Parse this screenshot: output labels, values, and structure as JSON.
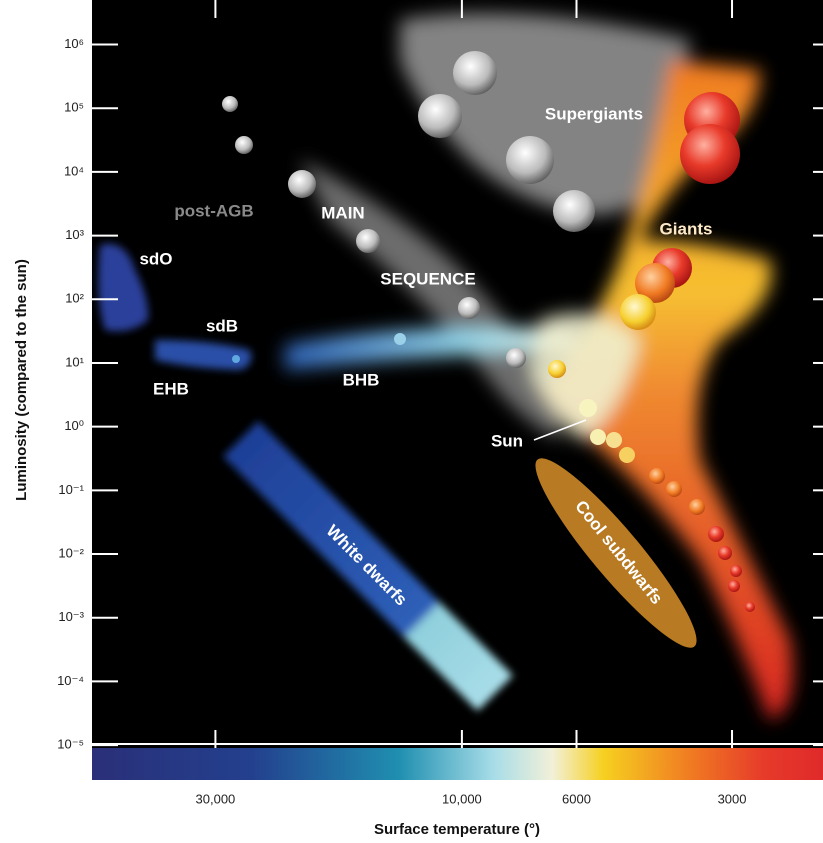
{
  "chart_data": {
    "type": "scatter",
    "x_label": "Surface temperature (°)",
    "y_label": "Luminosity (compared to the sun)",
    "x_log": true,
    "y_log": true,
    "xlim": [
      52000,
      2000
    ],
    "xticks": [
      {
        "value": 30000,
        "label": "30,000"
      },
      {
        "value": 10000,
        "label": "10,000"
      },
      6000,
      3000
    ],
    "ylim": [
      9e-06,
      5000000
    ],
    "yticks": [
      {
        "value": 1e-05,
        "label": "10⁻⁵"
      },
      {
        "value": 0.0001,
        "label": "10⁻⁴"
      },
      {
        "value": 0.001,
        "label": "10⁻³"
      },
      {
        "value": 0.01,
        "label": "10⁻²"
      },
      {
        "value": 0.1,
        "label": "10⁻¹"
      },
      {
        "value": 1,
        "label": "10⁰"
      },
      {
        "value": 10,
        "label": "10¹"
      },
      {
        "value": 100,
        "label": "10²"
      },
      {
        "value": 1000,
        "label": "10³"
      },
      {
        "value": 10000,
        "label": "10⁴"
      },
      {
        "value": 100000,
        "label": "10⁵"
      },
      {
        "value": 1000000,
        "label": "10⁶"
      }
    ],
    "annotations": [
      "Supergiants",
      "Giants",
      "post-AGB",
      "MAIN",
      "SEQUENCE",
      "sdO",
      "sdB",
      "EHB",
      "BHB",
      "Sun",
      "White dwarfs",
      "Cool subdwarfs"
    ]
  }
}
